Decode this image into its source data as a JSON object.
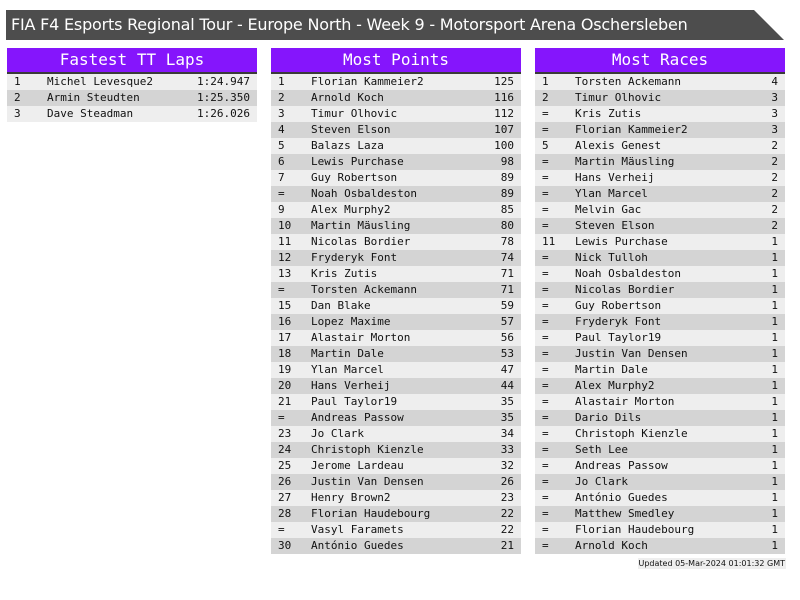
{
  "title": "FIA F4 Esports Regional Tour - Europe North - Week 9 - Motorsport Arena Oschersleben",
  "panels": [
    {
      "title": "Fastest TT Laps",
      "rows": [
        [
          "1",
          "Michel Levesque2",
          "1:24.947"
        ],
        [
          "2",
          "Armin Steudten",
          "1:25.350"
        ],
        [
          "3",
          "Dave Steadman",
          "1:26.026"
        ]
      ]
    },
    {
      "title": "Most Points",
      "rows": [
        [
          "1",
          "Florian Kammeier2",
          "125"
        ],
        [
          "2",
          "Arnold Koch",
          "116"
        ],
        [
          "3",
          "Timur Olhovic",
          "112"
        ],
        [
          "4",
          "Steven Elson",
          "107"
        ],
        [
          "5",
          "Balazs Laza",
          "100"
        ],
        [
          "6",
          "Lewis Purchase",
          "98"
        ],
        [
          "7",
          "Guy Robertson",
          "89"
        ],
        [
          "=",
          "Noah Osbaldeston",
          "89"
        ],
        [
          "9",
          "Alex Murphy2",
          "85"
        ],
        [
          "10",
          "Martin Mäusling",
          "80"
        ],
        [
          "11",
          "Nicolas Bordier",
          "78"
        ],
        [
          "12",
          "Fryderyk Font",
          "74"
        ],
        [
          "13",
          "Kris Zutis",
          "71"
        ],
        [
          "=",
          "Torsten Ackemann",
          "71"
        ],
        [
          "15",
          "Dan Blake",
          "59"
        ],
        [
          "16",
          "Lopez Maxime",
          "57"
        ],
        [
          "17",
          "Alastair Morton",
          "56"
        ],
        [
          "18",
          "Martin Dale",
          "53"
        ],
        [
          "19",
          "Ylan Marcel",
          "47"
        ],
        [
          "20",
          "Hans Verheij",
          "44"
        ],
        [
          "21",
          "Paul Taylor19",
          "35"
        ],
        [
          "=",
          "Andreas Passow",
          "35"
        ],
        [
          "23",
          "Jo Clark",
          "34"
        ],
        [
          "24",
          "Christoph Kienzle",
          "33"
        ],
        [
          "25",
          "Jerome Lardeau",
          "32"
        ],
        [
          "26",
          "Justin Van Densen",
          "26"
        ],
        [
          "27",
          "Henry Brown2",
          "23"
        ],
        [
          "28",
          "Florian Haudebourg",
          "22"
        ],
        [
          "=",
          "Vasyl Faramets",
          "22"
        ],
        [
          "30",
          "António Guedes",
          "21"
        ]
      ]
    },
    {
      "title": "Most Races",
      "rows": [
        [
          "1",
          "Torsten Ackemann",
          "4"
        ],
        [
          "2",
          "Timur Olhovic",
          "3"
        ],
        [
          "=",
          "Kris Zutis",
          "3"
        ],
        [
          "=",
          "Florian Kammeier2",
          "3"
        ],
        [
          "5",
          "Alexis Genest",
          "2"
        ],
        [
          "=",
          "Martin Mäusling",
          "2"
        ],
        [
          "=",
          "Hans Verheij",
          "2"
        ],
        [
          "=",
          "Ylan Marcel",
          "2"
        ],
        [
          "=",
          "Melvin Gac",
          "2"
        ],
        [
          "=",
          "Steven Elson",
          "2"
        ],
        [
          "11",
          "Lewis Purchase",
          "1"
        ],
        [
          "=",
          "Nick Tulloh",
          "1"
        ],
        [
          "=",
          "Noah Osbaldeston",
          "1"
        ],
        [
          "=",
          "Nicolas Bordier",
          "1"
        ],
        [
          "=",
          "Guy Robertson",
          "1"
        ],
        [
          "=",
          "Fryderyk Font",
          "1"
        ],
        [
          "=",
          "Paul Taylor19",
          "1"
        ],
        [
          "=",
          "Justin Van Densen",
          "1"
        ],
        [
          "=",
          "Martin Dale",
          "1"
        ],
        [
          "=",
          "Alex Murphy2",
          "1"
        ],
        [
          "=",
          "Alastair Morton",
          "1"
        ],
        [
          "=",
          "Dario Dils",
          "1"
        ],
        [
          "=",
          "Christoph Kienzle",
          "1"
        ],
        [
          "=",
          "Seth Lee",
          "1"
        ],
        [
          "=",
          "Andreas Passow",
          "1"
        ],
        [
          "=",
          "Jo Clark",
          "1"
        ],
        [
          "=",
          "António Guedes",
          "1"
        ],
        [
          "=",
          "Matthew Smedley",
          "1"
        ],
        [
          "=",
          "Florian Haudebourg",
          "1"
        ],
        [
          "=",
          "Arnold Koch",
          "1"
        ]
      ]
    }
  ],
  "footer": "Updated 05-Mar-2024 01:01:32 GMT",
  "colors": {
    "title_bg": "#4d4d4d",
    "header_bg": "#8515fc",
    "row_light": "#eeeeee",
    "row_dark": "#d4d4d4"
  }
}
